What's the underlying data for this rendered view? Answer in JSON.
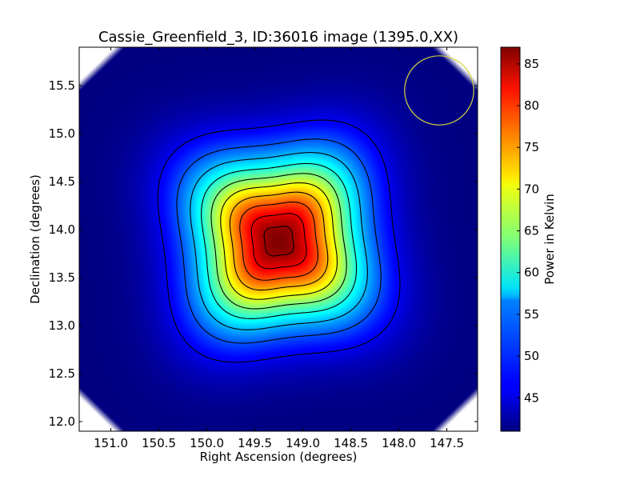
{
  "chart_data": {
    "type": "heatmap",
    "title": "Cassie_Greenfield_3, ID:36016 image (1395.0,XX)",
    "xlabel": "Right Ascension (degrees)",
    "ylabel": "Declination (degrees)",
    "xlim": [
      151.33,
      147.18
    ],
    "ylim": [
      11.9,
      15.9
    ],
    "x_ticks": [
      "151.0",
      "150.5",
      "150.0",
      "149.5",
      "149.0",
      "148.5",
      "148.0",
      "147.5"
    ],
    "y_ticks": [
      "12.0",
      "12.5",
      "13.0",
      "13.5",
      "14.0",
      "14.5",
      "15.0",
      "15.5"
    ],
    "colormap": "jet",
    "colorbar": {
      "label": "Power in Kelvin",
      "range": [
        41,
        87
      ],
      "ticks": [
        "45",
        "50",
        "55",
        "60",
        "65",
        "70",
        "75",
        "80",
        "85"
      ]
    },
    "peak": {
      "ra": 149.25,
      "dec": 13.88,
      "value": 87
    },
    "background_value": 41,
    "contour_levels": [
      46,
      50.5,
      55,
      59.5,
      64,
      68.5,
      73,
      77.5,
      82,
      85.5
    ],
    "beam_circle": {
      "ra": 147.58,
      "dec": 15.45,
      "radius_deg": 0.36,
      "color": "#d4d43a"
    }
  }
}
